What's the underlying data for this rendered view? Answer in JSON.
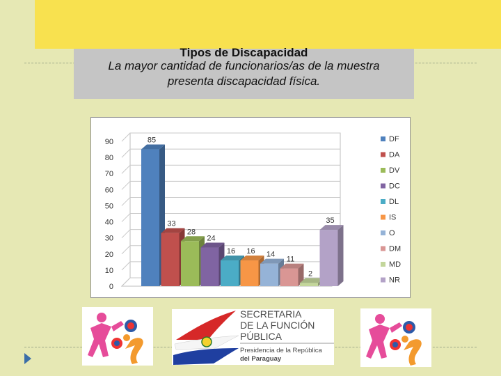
{
  "slide": {
    "title": "Tipos de Discapacidad",
    "subtitle_line1": "La mayor cantidad de funcionarios/as de la muestra",
    "subtitle_line2": "presenta discapacidad física."
  },
  "colors": {
    "banner": "#f8e14f",
    "background": "#e6e8b4",
    "title_box": "#c5c5c5"
  },
  "chart_data": {
    "type": "bar",
    "categories": [
      "DF",
      "DA",
      "DV",
      "DC",
      "DL",
      "IS",
      "O",
      "DM",
      "MD",
      "NR"
    ],
    "values": [
      85,
      33,
      28,
      24,
      16,
      16,
      14,
      11,
      2,
      35
    ],
    "colors": [
      "#4f81bd",
      "#c0504d",
      "#9bbb59",
      "#8064a2",
      "#4bacc6",
      "#f79646",
      "#95b3d7",
      "#d99694",
      "#c3d69b",
      "#b3a2c7"
    ],
    "ylim": [
      0,
      90
    ],
    "yticks": [
      0,
      10,
      20,
      30,
      40,
      50,
      60,
      70,
      80,
      90
    ],
    "legend": "right",
    "grid": true
  },
  "logos": {
    "sfp_line1": "SECRETARIA",
    "sfp_line2": "DE LA FUNCIÓN",
    "sfp_line3": "PÚBLICA",
    "sfp_line4": "Presidencia de la República",
    "sfp_line5": "del Paraguay"
  }
}
